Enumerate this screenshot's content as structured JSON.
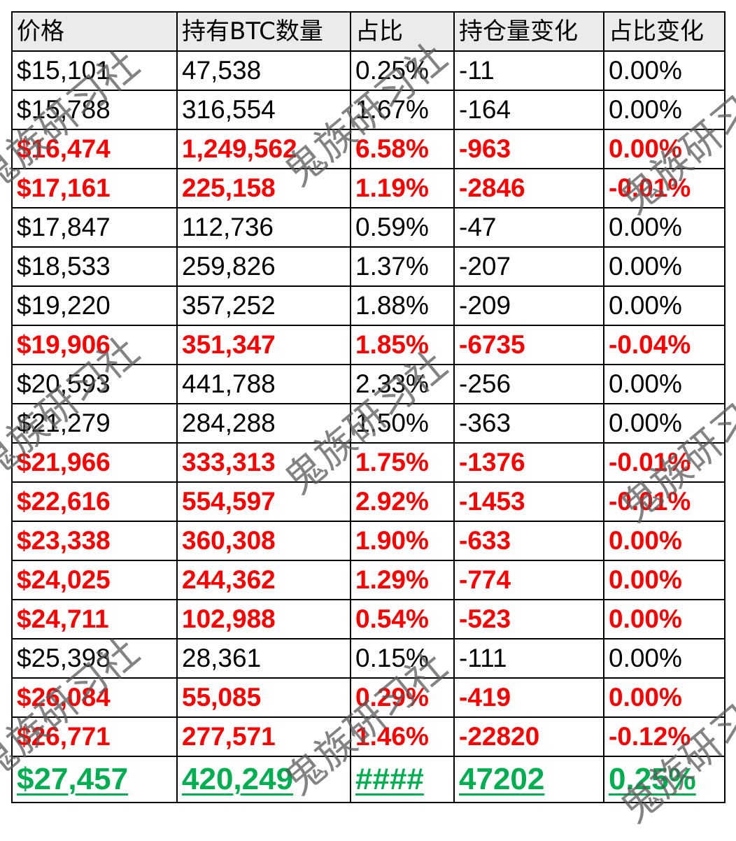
{
  "headers": [
    "价格",
    "持有BTC数量",
    "占比",
    "持仓量变化",
    "占比变化"
  ],
  "rows": [
    {
      "style": "normal",
      "cells": [
        "$15,101",
        "47,538",
        "0.25%",
        "-11",
        "0.00%"
      ]
    },
    {
      "style": "normal",
      "cells": [
        "$15,788",
        "316,554",
        "1.67%",
        "-164",
        "0.00%"
      ]
    },
    {
      "style": "red",
      "cells": [
        "$16,474",
        "1,249,562",
        "6.58%",
        "-963",
        "0.00%"
      ]
    },
    {
      "style": "red",
      "cells": [
        "$17,161",
        "225,158",
        "1.19%",
        "-2846",
        "-0.01%"
      ]
    },
    {
      "style": "normal",
      "cells": [
        "$17,847",
        "112,736",
        "0.59%",
        "-47",
        "0.00%"
      ]
    },
    {
      "style": "normal",
      "cells": [
        "$18,533",
        "259,826",
        "1.37%",
        "-207",
        "0.00%"
      ]
    },
    {
      "style": "normal",
      "cells": [
        "$19,220",
        "357,252",
        "1.88%",
        "-209",
        "0.00%"
      ]
    },
    {
      "style": "red",
      "cells": [
        "$19,906",
        "351,347",
        "1.85%",
        "-6735",
        "-0.04%"
      ]
    },
    {
      "style": "normal",
      "cells": [
        "$20,593",
        "441,788",
        "2.33%",
        "-256",
        "0.00%"
      ]
    },
    {
      "style": "normal",
      "cells": [
        "$21,279",
        "284,288",
        "1.50%",
        "-363",
        "0.00%"
      ]
    },
    {
      "style": "red",
      "cells": [
        "$21,966",
        "333,313",
        "1.75%",
        "-1376",
        "-0.01%"
      ]
    },
    {
      "style": "red",
      "cells": [
        "$22,616",
        "554,597",
        "2.92%",
        "-1453",
        "-0.01%"
      ]
    },
    {
      "style": "red",
      "cells": [
        "$23,338",
        "360,308",
        "1.90%",
        "-633",
        "0.00%"
      ]
    },
    {
      "style": "red",
      "cells": [
        "$24,025",
        "244,362",
        "1.29%",
        "-774",
        "0.00%"
      ]
    },
    {
      "style": "red",
      "cells": [
        "$24,711",
        "102,988",
        "0.54%",
        "-523",
        "0.00%"
      ]
    },
    {
      "style": "normal",
      "cells": [
        "$25,398",
        "28,361",
        "0.15%",
        "-111",
        "0.00%"
      ]
    },
    {
      "style": "red",
      "cells": [
        "$26,084",
        "55,085",
        "0.29%",
        "-419",
        "0.00%"
      ]
    },
    {
      "style": "red",
      "cells": [
        "$26,771",
        "277,571",
        "1.46%",
        "-22820",
        "-0.12%"
      ]
    },
    {
      "style": "green",
      "cells": [
        "$27,457",
        "420,249",
        "####",
        "47202",
        "0.25%"
      ]
    }
  ],
  "watermark": "鬼族研习社",
  "colors": {
    "red": "#ff0000",
    "green": "#00b050",
    "header_bg": "#ebebeb"
  }
}
